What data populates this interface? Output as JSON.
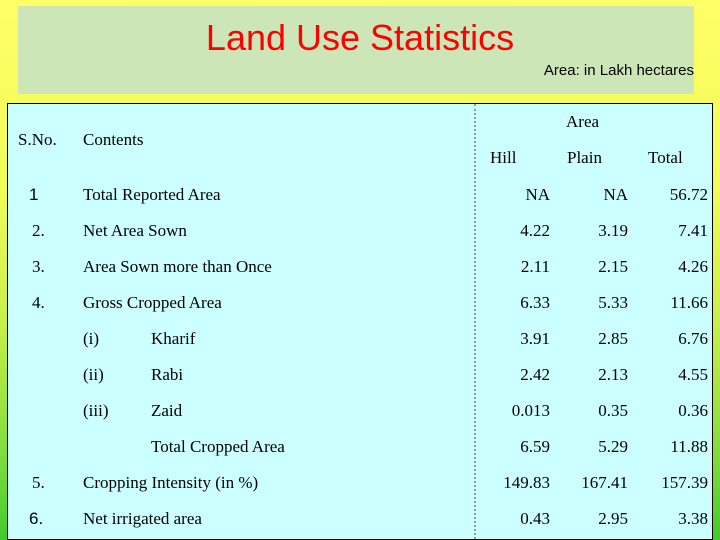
{
  "header": {
    "title": "Land Use Statistics",
    "unit_note": "Area: in Lakh hectares"
  },
  "table": {
    "columns": {
      "sno": "S.No.",
      "contents": "Contents",
      "area": "Area",
      "hill": "Hill",
      "plain": "Plain",
      "total": "Total"
    },
    "rows": [
      {
        "sno": "1",
        "sub": "",
        "label": "Total Reported Area",
        "hill": "NA",
        "plain": "NA",
        "total": "56.72"
      },
      {
        "sno": "2.",
        "sub": "",
        "label": "Net Area Sown",
        "hill": "4.22",
        "plain": "3.19",
        "total": "7.41"
      },
      {
        "sno": "3.",
        "sub": "",
        "label": "Area Sown more than Once",
        "hill": "2.11",
        "plain": "2.15",
        "total": "4.26"
      },
      {
        "sno": "4.",
        "sub": "",
        "label": "Gross Cropped Area",
        "hill": "6.33",
        "plain": "5.33",
        "total": "11.66"
      },
      {
        "sno": "",
        "sub": "(i)",
        "label": "Kharif",
        "hill": "3.91",
        "plain": "2.85",
        "total": "6.76"
      },
      {
        "sno": "",
        "sub": "(ii)",
        "label": "Rabi",
        "hill": "2.42",
        "plain": "2.13",
        "total": "4.55"
      },
      {
        "sno": "",
        "sub": "(iii)",
        "label": "Zaid",
        "hill": "0.013",
        "plain": "0.35",
        "total": "0.36"
      },
      {
        "sno": "",
        "sub": "",
        "label": "Total Cropped Area",
        "hill": "6.59",
        "plain": "5.29",
        "total": "11.88"
      },
      {
        "sno": "5.",
        "sub": "",
        "label": "Cropping Intensity (in %)",
        "hill": "149.83",
        "plain": "167.41",
        "total": "157.39"
      },
      {
        "sno": "6.",
        "sub": "",
        "label": "Net irrigated area",
        "hill": "0.43",
        "plain": "2.95",
        "total": "3.38"
      }
    ]
  }
}
